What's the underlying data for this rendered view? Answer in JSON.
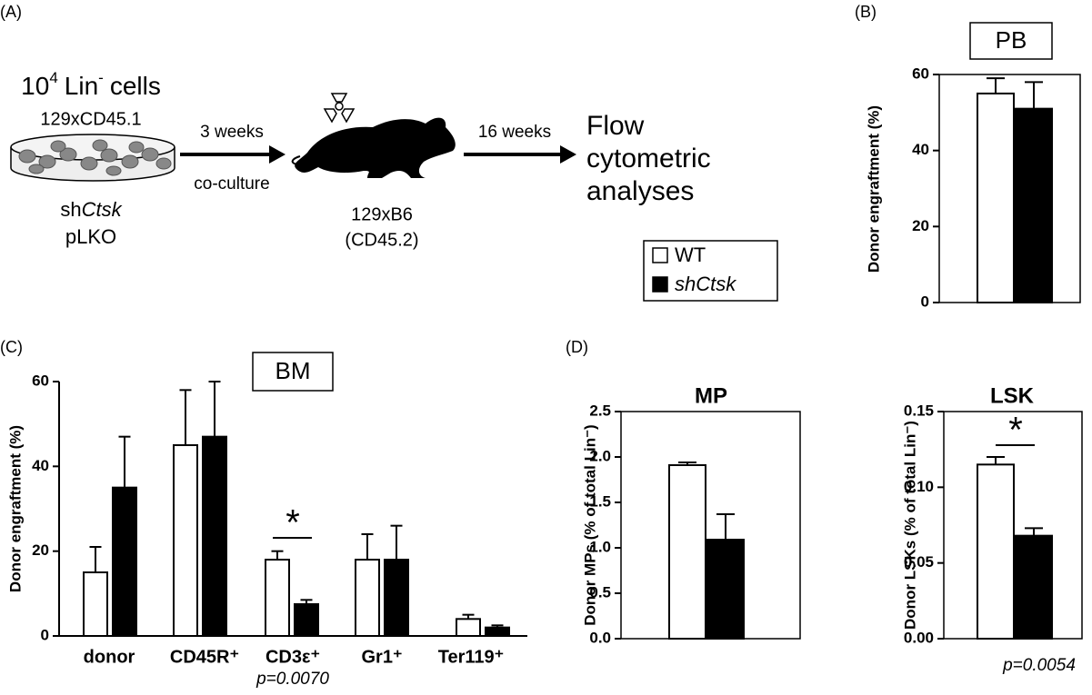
{
  "panel_labels": [
    "(A)",
    "(B)",
    "(C)",
    "(D)"
  ],
  "schematic": {
    "cells": {
      "base": "10",
      "exp": "4",
      "word": "Lin",
      "minus": "-",
      "tail": "cells"
    },
    "strain": "129xCD45.1",
    "construct": {
      "prefix": "sh",
      "gene": "Ctsk"
    },
    "control": "pLKO",
    "step1_top": "3 weeks",
    "step1_bottom": "co-culture",
    "recipient_strain": "129xB6",
    "recipient_marker": "(CD45.2)",
    "step2_top": "16 weeks",
    "outcome": [
      "Flow",
      "cytometric",
      "analyses"
    ]
  },
  "chart_data": [
    {
      "type": "bar",
      "title": "PB",
      "title_boxed": true,
      "frame": true,
      "y_label": "Donor engraftment (%)",
      "categories": [
        null
      ],
      "series": [
        {
          "name": "WT",
          "color": "#ffffff",
          "values": [
            55
          ],
          "errors": [
            4
          ]
        },
        {
          "name": "shCtsk",
          "color": "#000000",
          "values": [
            51
          ],
          "errors": [
            7
          ]
        }
      ],
      "ylim": [
        0,
        60
      ],
      "yticks": [
        0,
        20,
        40,
        60
      ]
    },
    {
      "type": "bar",
      "title": "BM",
      "title_boxed": true,
      "frame": false,
      "y_label": "Donor engraftment (%)",
      "categories": [
        "donor",
        "CD45R⁺",
        "CD3ε⁺",
        "Gr1⁺",
        "Ter119⁺"
      ],
      "series": [
        {
          "name": "WT",
          "color": "#ffffff",
          "values": [
            15,
            45,
            18,
            18,
            4
          ],
          "errors": [
            6,
            13,
            2,
            6,
            1
          ]
        },
        {
          "name": "shCtsk",
          "color": "#000000",
          "values": [
            35,
            47,
            7.5,
            18,
            2
          ],
          "errors": [
            12,
            13,
            1,
            8,
            0.5
          ]
        }
      ],
      "ylim": [
        0,
        60
      ],
      "yticks": [
        0,
        20,
        40,
        60
      ],
      "significance": "*",
      "p_value": "p=0.0070"
    },
    {
      "type": "bar",
      "title": "MP",
      "title_boxed": false,
      "frame": true,
      "y_label": "Donor MPs (% of total Lin⁻)",
      "categories": [
        null
      ],
      "series": [
        {
          "name": "WT",
          "color": "#ffffff",
          "values": [
            1.91
          ],
          "errors": [
            0.03
          ]
        },
        {
          "name": "shCtsk",
          "color": "#000000",
          "values": [
            1.09
          ],
          "errors": [
            0.28
          ]
        }
      ],
      "ylim": [
        0,
        2.5
      ],
      "yticks": [
        {
          "value": 0,
          "label": "0.0"
        },
        0.5,
        {
          "value": 1,
          "label": "1.0"
        },
        1.5,
        {
          "value": 2,
          "label": "2.0"
        },
        2.5
      ]
    },
    {
      "type": "bar",
      "title": "LSK",
      "title_boxed": false,
      "frame": true,
      "y_label": "Donor LSKs (% of total Lin⁻)",
      "categories": [
        null
      ],
      "series": [
        {
          "name": "WT",
          "color": "#ffffff",
          "values": [
            0.115
          ],
          "errors": [
            0.005
          ]
        },
        {
          "name": "shCtsk",
          "color": "#000000",
          "values": [
            0.068
          ],
          "errors": [
            0.005
          ]
        }
      ],
      "ylim": [
        0,
        0.15
      ],
      "yticks": [
        {
          "value": 0,
          "label": "0.00"
        },
        {
          "value": 0.05,
          "label": "0.05"
        },
        {
          "value": 0.1,
          "label": "0.10"
        },
        {
          "value": 0.15,
          "label": "0.15"
        }
      ],
      "significance": "*",
      "p_value": "p=0.0054"
    }
  ]
}
